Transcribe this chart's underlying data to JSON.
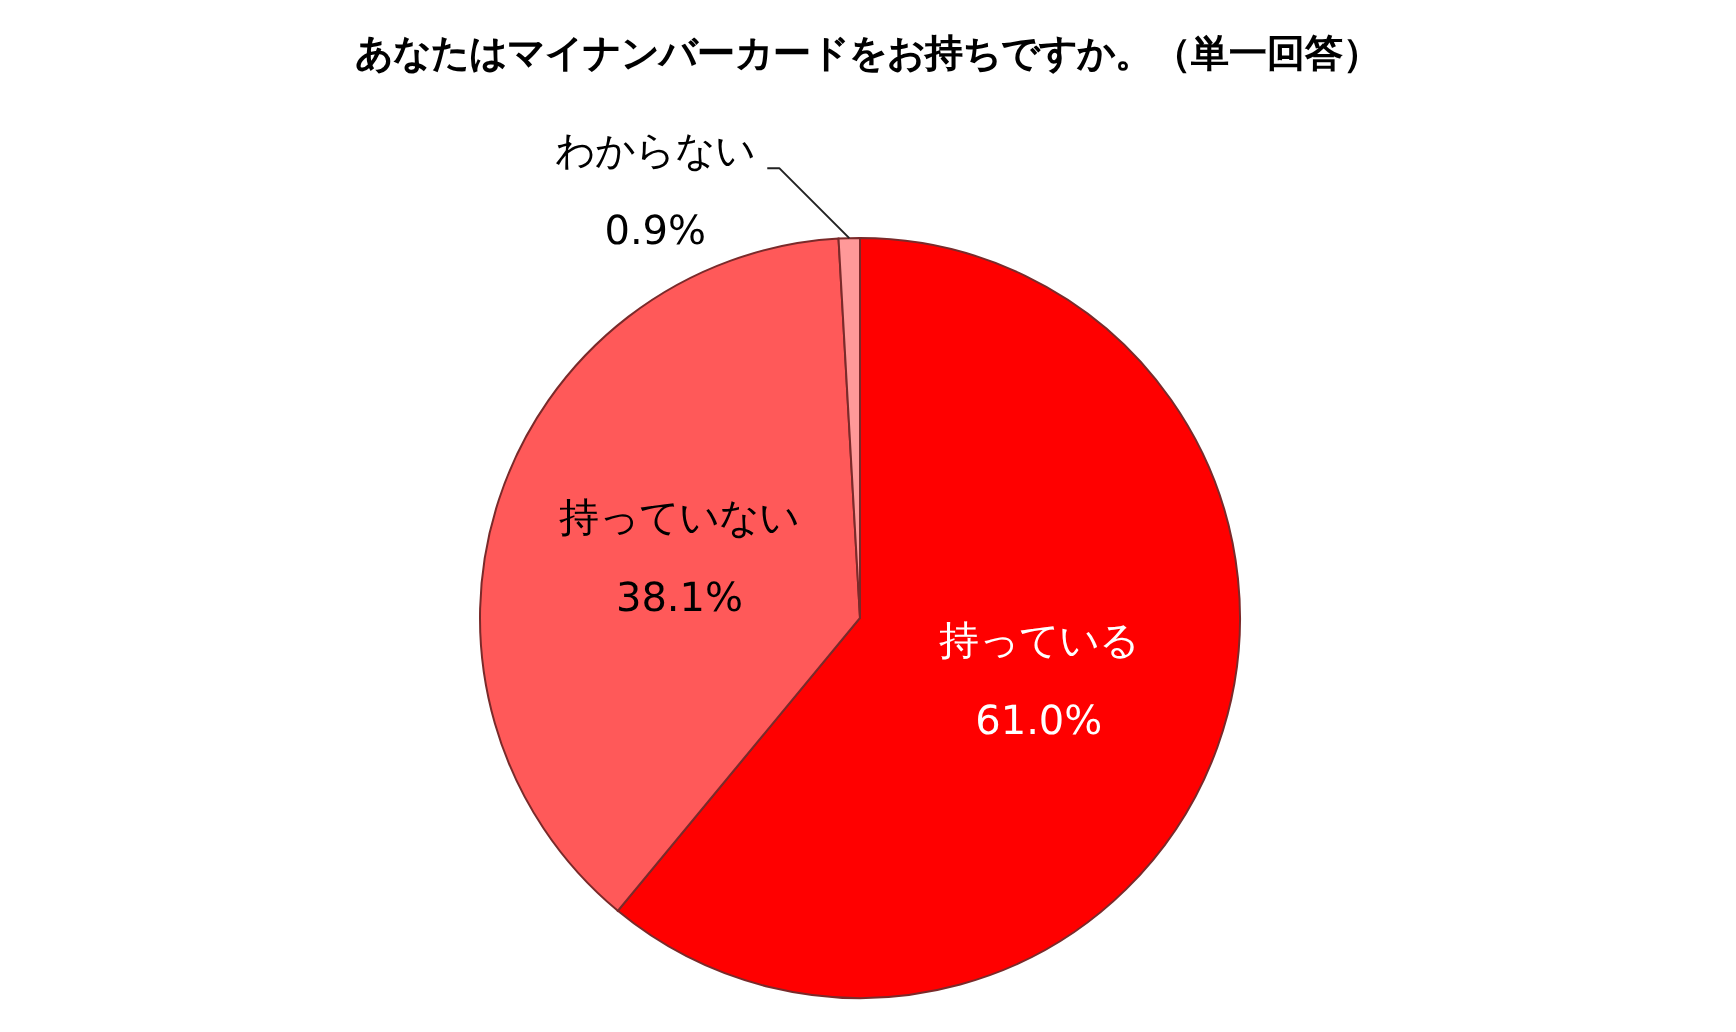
{
  "chart_data": {
    "type": "pie",
    "title": "あなたはマイナンバーカードをお持ちですか。（単一回答）",
    "categories": [
      "持っている",
      "持っていない",
      "わからない"
    ],
    "values": [
      61.0,
      38.1,
      0.9
    ],
    "colors": [
      "#ff0000",
      "#ff5959",
      "#ff9999"
    ],
    "value_labels": [
      "61.0%",
      "38.1%",
      "0.9%"
    ]
  }
}
